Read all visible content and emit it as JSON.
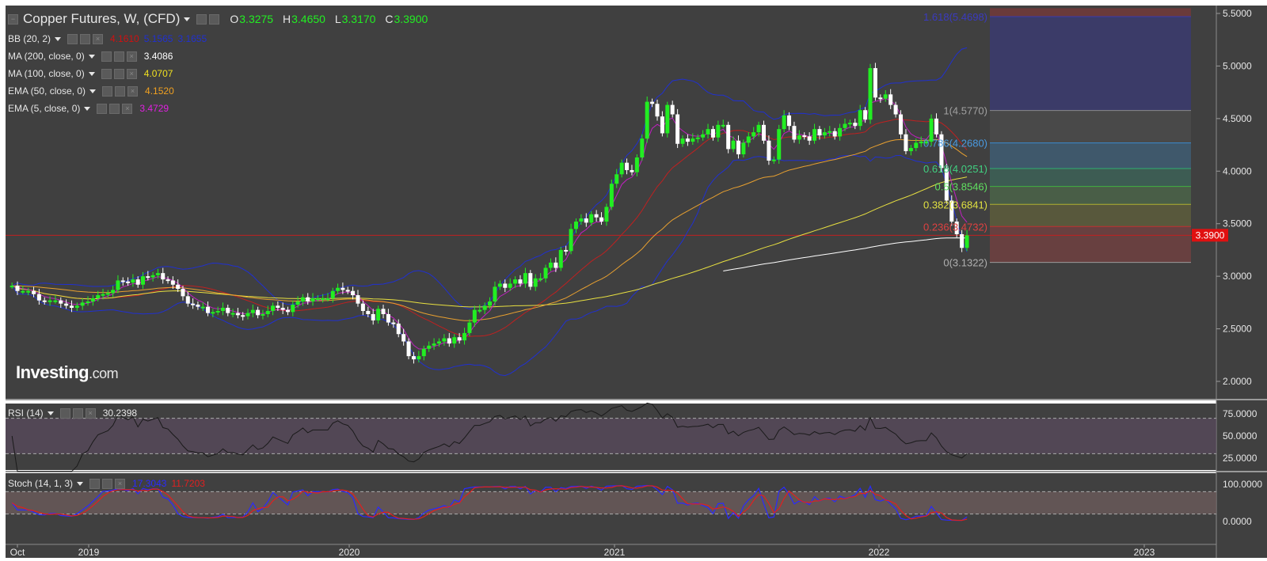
{
  "header": {
    "title": "Copper Futures, W, (CFD)",
    "ohlc": [
      {
        "label": "O",
        "value": "3.3275"
      },
      {
        "label": "H",
        "value": "3.4650"
      },
      {
        "label": "L",
        "value": "3.3170"
      },
      {
        "label": "C",
        "value": "3.3900"
      }
    ]
  },
  "indicators": [
    {
      "label": "BB (20, 2)",
      "values": [
        "4.1610",
        "5.1565",
        "3.1655"
      ],
      "colors": [
        "#d01010",
        "#2030d0",
        "#2030d0"
      ]
    },
    {
      "label": "MA (200, close, 0)",
      "values": [
        "3.4086"
      ],
      "colors": [
        "#ffffff"
      ]
    },
    {
      "label": "MA (100, close, 0)",
      "values": [
        "4.0707"
      ],
      "colors": [
        "#f0e020"
      ]
    },
    {
      "label": "EMA (50, close, 0)",
      "values": [
        "4.1520"
      ],
      "colors": [
        "#f0a020"
      ]
    },
    {
      "label": "EMA (5, close, 0)",
      "values": [
        "3.4729"
      ],
      "colors": [
        "#e020e0"
      ]
    }
  ],
  "rsi_legend": {
    "label": "RSI (14)",
    "value": "30.2398"
  },
  "stoch_legend": {
    "label": "Stoch (14, 1, 3)",
    "values": [
      "17.3043",
      "11.7203"
    ],
    "colors": [
      "#2a2aff",
      "#e02020"
    ]
  },
  "logo": {
    "brand": "Investing",
    "suffix": ".com"
  },
  "price_label": "3.3900",
  "colors": {
    "background": "#404040",
    "up": "#22ee22",
    "down": "#ffffff",
    "bb": "#2030d0",
    "bb_mid": "#c02020",
    "ma200": "#ffffff",
    "ma100": "#e8e040",
    "ema50": "#e8a030",
    "ema5": "#c020c0",
    "resistance": "#c02020"
  },
  "chart_data": {
    "type": "candlestick",
    "symbol": "Copper Futures",
    "timeframe": "W",
    "y_axis_ticks": [
      "5.5000",
      "5.0000",
      "4.5000",
      "4.0000",
      "3.5000",
      "3.0000",
      "2.5000",
      "2.0000"
    ],
    "ylim": [
      1.95,
      5.55
    ],
    "x_axis_ticks": [
      "Oct",
      "2019",
      "2020",
      "2021",
      "2022",
      "2023"
    ],
    "x_tick_dates": [
      "2018-10-01",
      "2019-01-01",
      "2020-01-01",
      "2021-01-01",
      "2022-01-01",
      "2023-01-01"
    ],
    "last_price": 3.39,
    "horizontal_line": 3.39,
    "fibonacci": {
      "swing_high_level": "1(4.5770)",
      "levels": [
        {
          "label": "1.618(5.4698)",
          "value": 5.4698
        },
        {
          "label": "1(4.5770)",
          "value": 4.577
        },
        {
          "label": "0.786(4.2680)",
          "value": 4.268
        },
        {
          "label": "0.618(4.0251)",
          "value": 4.0251
        },
        {
          "label": "0.5(3.8546)",
          "value": 3.8546
        },
        {
          "label": "0.382(3.6841)",
          "value": 3.6841
        },
        {
          "label": "0.236(3.4732)",
          "value": 3.4732
        },
        {
          "label": "0(3.1322)",
          "value": 3.1322
        }
      ],
      "extra_top": 5.55
    },
    "close_series": {
      "start": "2018-09-24",
      "interval_days": 7,
      "values": [
        2.91,
        2.86,
        2.86,
        2.86,
        2.83,
        2.77,
        2.76,
        2.77,
        2.77,
        2.74,
        2.72,
        2.7,
        2.72,
        2.75,
        2.76,
        2.79,
        2.82,
        2.83,
        2.84,
        2.87,
        2.96,
        2.95,
        2.94,
        2.97,
        2.92,
        3.0,
        2.99,
        3.01,
        3.03,
        2.97,
        2.96,
        2.92,
        2.88,
        2.81,
        2.74,
        2.73,
        2.71,
        2.71,
        2.65,
        2.66,
        2.67,
        2.7,
        2.65,
        2.65,
        2.63,
        2.62,
        2.65,
        2.68,
        2.63,
        2.64,
        2.67,
        2.72,
        2.7,
        2.68,
        2.66,
        2.73,
        2.76,
        2.8,
        2.76,
        2.79,
        2.79,
        2.79,
        2.79,
        2.86,
        2.89,
        2.87,
        2.86,
        2.82,
        2.74,
        2.67,
        2.64,
        2.58,
        2.69,
        2.64,
        2.56,
        2.55,
        2.45,
        2.38,
        2.24,
        2.21,
        2.24,
        2.31,
        2.34,
        2.36,
        2.38,
        2.41,
        2.36,
        2.42,
        2.39,
        2.46,
        2.56,
        2.68,
        2.68,
        2.72,
        2.76,
        2.9,
        2.93,
        2.89,
        2.93,
        2.97,
        2.93,
        3.03,
        2.9,
        2.98,
        2.98,
        3.08,
        3.13,
        3.08,
        3.25,
        3.24,
        3.45,
        3.52,
        3.55,
        3.51,
        3.59,
        3.56,
        3.52,
        3.66,
        3.88,
        3.97,
        4.08,
        4.01,
        3.99,
        4.13,
        4.31,
        4.66,
        4.64,
        4.52,
        4.36,
        4.63,
        4.54,
        4.26,
        4.31,
        4.28,
        4.31,
        4.32,
        4.35,
        4.4,
        4.32,
        4.44,
        4.44,
        4.21,
        4.29,
        4.16,
        4.27,
        4.33,
        4.37,
        4.44,
        4.29,
        4.1,
        4.11,
        4.4,
        4.53,
        4.43,
        4.3,
        4.34,
        4.33,
        4.29,
        4.4,
        4.34,
        4.37,
        4.38,
        4.33,
        4.41,
        4.45,
        4.46,
        4.43,
        4.58,
        4.49,
        4.98,
        4.7,
        4.69,
        4.73,
        4.63,
        4.54,
        4.35,
        4.19,
        4.22,
        4.27,
        4.28,
        4.28,
        4.5,
        4.35,
        4.03,
        3.72,
        3.52,
        3.4,
        3.27,
        3.39
      ]
    }
  }
}
